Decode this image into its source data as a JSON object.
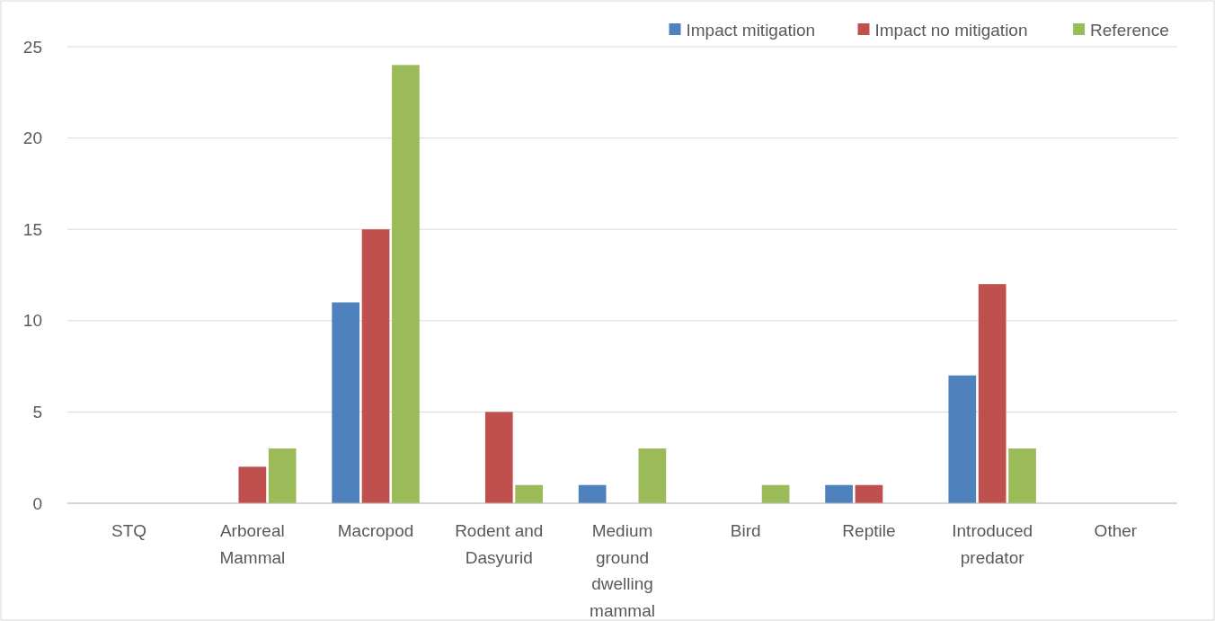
{
  "chart_data": {
    "type": "bar",
    "categories": [
      "STQ",
      "Arboreal Mammal",
      "Macropod",
      "Rodent and Dasyurid",
      "Medium ground dwelling mammal",
      "Bird",
      "Reptile",
      "Introduced predator",
      "Other"
    ],
    "series": [
      {
        "name": "Impact mitigation",
        "color": "#4f81bd",
        "values": [
          0,
          0,
          11,
          0,
          1,
          0,
          1,
          7,
          0
        ]
      },
      {
        "name": "Impact no mitigation",
        "color": "#c0504d",
        "values": [
          0,
          2,
          15,
          5,
          0,
          0,
          1,
          12,
          0
        ]
      },
      {
        "name": "Reference",
        "color": "#9bbb59",
        "values": [
          0,
          3,
          24,
          1,
          3,
          1,
          0,
          3,
          0
        ]
      }
    ],
    "ylim": [
      0,
      25
    ],
    "yticks": [
      0,
      5,
      10,
      15,
      20,
      25
    ],
    "grid": "y",
    "legend": "top right"
  }
}
